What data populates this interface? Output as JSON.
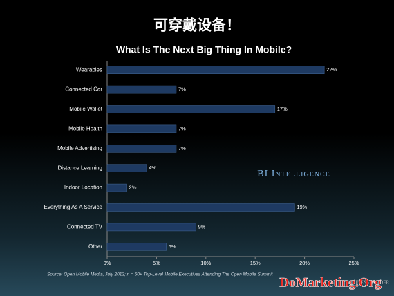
{
  "chart_data": {
    "type": "bar",
    "orientation": "horizontal",
    "supertitle": "可穿戴设备！",
    "title": "What Is The Next Big Thing In Mobile?",
    "categories": [
      "Wearables",
      "Connected Car",
      "Mobile Wallet",
      "Mobile Health",
      "Mobile Advertising",
      "Distance Learning",
      "Indoor Location",
      "Everything As A Service",
      "Connected TV",
      "Other"
    ],
    "values": [
      22,
      7,
      17,
      7,
      7,
      4,
      2,
      19,
      9,
      6
    ],
    "value_labels": [
      "22%",
      "7%",
      "17%",
      "7%",
      "7%",
      "4%",
      "2%",
      "19%",
      "9%",
      "6%"
    ],
    "color": "#1e3a62",
    "xlim": [
      0,
      25
    ],
    "xticks": [
      {
        "value": 0,
        "label": "0%"
      },
      {
        "value": 5,
        "label": "5%"
      },
      {
        "value": 10,
        "label": "10%"
      },
      {
        "value": 15,
        "label": "15%"
      },
      {
        "value": 20,
        "label": "20%"
      },
      {
        "value": 25,
        "label": "25%"
      }
    ],
    "grid": false,
    "annotation": "BI Intelligence",
    "source": "Source: Open Mobile Media, July 2013; n = 50+ Top-Level Mobile Executives Attending The Open Mobile Summit",
    "logo": "Business Insider",
    "watermark": "DoMarketing.Org"
  }
}
